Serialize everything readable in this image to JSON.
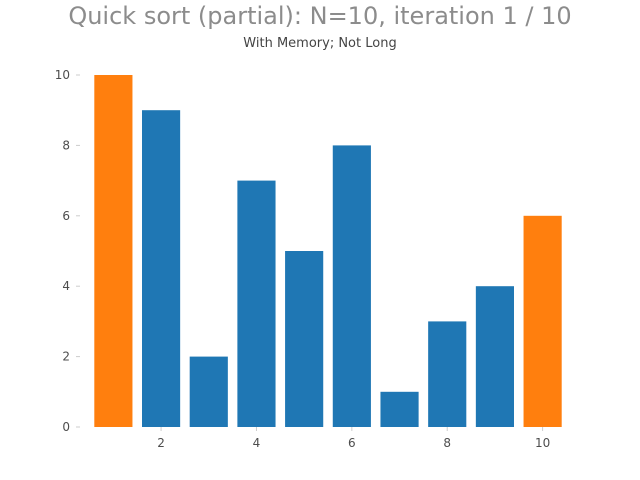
{
  "chart_data": {
    "type": "bar",
    "title": "Quick sort (partial): N=10, iteration 1 / 10",
    "subtitle": "With Memory; Not Long",
    "xlabel": "",
    "ylabel": "",
    "x": [
      1,
      2,
      3,
      4,
      5,
      6,
      7,
      8,
      9,
      10
    ],
    "values": [
      10,
      9,
      2,
      7,
      5,
      8,
      1,
      3,
      4,
      6
    ],
    "highlighted": [
      true,
      false,
      false,
      false,
      false,
      false,
      false,
      false,
      false,
      true
    ],
    "x_ticks": [
      "2",
      "4",
      "6",
      "8",
      "10"
    ],
    "x_tick_values": [
      2,
      4,
      6,
      8,
      10
    ],
    "y_ticks": [
      "0",
      "2",
      "4",
      "6",
      "8",
      "10"
    ],
    "y_tick_values": [
      0,
      2,
      4,
      6,
      8,
      10
    ],
    "xlim": [
      0.3,
      10.7
    ],
    "ylim": [
      0,
      10
    ],
    "grid": false,
    "colors": {
      "bar": "#1f77b4",
      "highlight": "#ff7f0e"
    }
  }
}
